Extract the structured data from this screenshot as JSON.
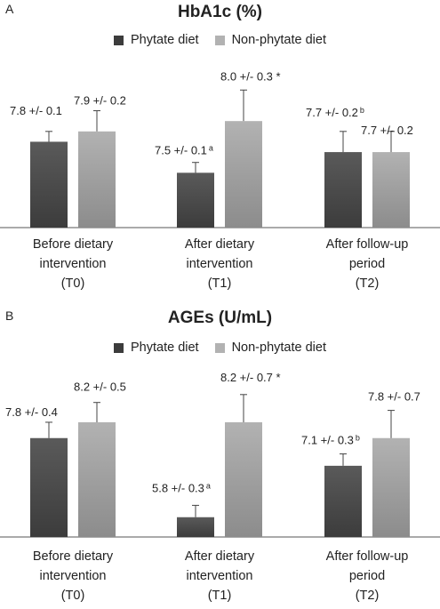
{
  "panels": [
    {
      "letter": "A",
      "title": "HbA1c (%)",
      "legend": [
        "Phytate diet",
        "Non-phytate diet"
      ]
    },
    {
      "letter": "B",
      "title": "AGEs (U/mL)",
      "legend": [
        "Phytate diet",
        "Non-phytate diet"
      ]
    }
  ],
  "colors": {
    "phytate_top": "#5a5a5a",
    "phytate_bottom": "#3c3c3c",
    "nonphytate_top": "#b2b2b2",
    "nonphytate_bottom": "#8c8c8c",
    "axis": "#555555"
  },
  "chart_data": [
    {
      "type": "bar",
      "title": "HbA1c (%)",
      "categories": [
        [
          "Before dietary",
          "intervention",
          "(T0)"
        ],
        [
          "After dietary",
          "intervention",
          "(T1)"
        ],
        [
          "After follow-up",
          "period",
          "(T2)"
        ]
      ],
      "series": [
        {
          "name": "Phytate diet",
          "values": [
            7.8,
            7.5,
            7.7
          ],
          "errors": [
            0.1,
            0.1,
            0.2
          ],
          "labels": [
            "7.8 +/- 0.1",
            "7.5 +/- 0.1",
            "7.7 +/- 0.2"
          ],
          "superscripts": [
            "",
            "a",
            "b"
          ]
        },
        {
          "name": "Non-phytate diet",
          "values": [
            7.9,
            8.0,
            7.7
          ],
          "errors": [
            0.2,
            0.3,
            0.2
          ],
          "labels": [
            "7.9 +/- 0.2",
            "8.0 +/- 0.3 *",
            "7.7 +/- 0.2"
          ],
          "superscripts": [
            "",
            "",
            ""
          ]
        }
      ],
      "ylim": [
        6.97,
        8.5
      ],
      "grid": false,
      "legend_position": "top"
    },
    {
      "type": "bar",
      "title": "AGEs (U/mL)",
      "categories": [
        [
          "Before dietary",
          "intervention",
          "(T0)"
        ],
        [
          "After dietary",
          "intervention",
          "(T1)"
        ],
        [
          "After follow-up",
          "period",
          "(T2)"
        ]
      ],
      "series": [
        {
          "name": "Phytate diet",
          "values": [
            7.8,
            5.8,
            7.1
          ],
          "errors": [
            0.4,
            0.3,
            0.3
          ],
          "labels": [
            "7.8 +/- 0.4",
            "5.8 +/- 0.3",
            "7.1 +/- 0.3"
          ],
          "superscripts": [
            "",
            "a",
            "b"
          ]
        },
        {
          "name": "Non-phytate diet",
          "values": [
            8.2,
            8.2,
            7.8
          ],
          "errors": [
            0.5,
            0.7,
            0.7
          ],
          "labels": [
            "8.2 +/- 0.5",
            "8.2 +/- 0.7 *",
            "7.8 +/- 0.7"
          ],
          "superscripts": [
            "",
            "",
            ""
          ]
        }
      ],
      "ylim": [
        5.3,
        9.3
      ],
      "grid": false,
      "legend_position": "top"
    }
  ]
}
